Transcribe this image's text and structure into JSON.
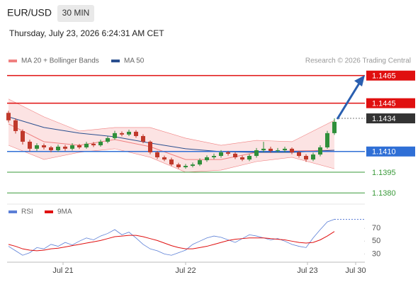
{
  "header": {
    "symbol": "EUR/USD",
    "timeframe": "30 MIN",
    "datetime": "Thursday, July 23, 2026 6:24:31 AM CET"
  },
  "chart_data": [
    {
      "type": "candlestick",
      "legend": [
        {
          "name": "MA 20 + Bollinger Bands",
          "color": "#f08080"
        },
        {
          "name": "MA 50",
          "color": "#2a4f8f"
        }
      ],
      "copyright": "Research © 2026 Trading Central",
      "xlim": [
        -0.2,
        50.3
      ],
      "ylim": [
        1.1376,
        1.1471
      ],
      "xticks": [
        {
          "value": 7.7,
          "label": "Jul 21"
        },
        {
          "value": 25,
          "label": "Jul 22"
        },
        {
          "value": 42.2,
          "label": "Jul 23"
        },
        {
          "value": 49,
          "label": "Jul 30"
        }
      ],
      "up_color": "#2f8f3a",
      "down_color": "#c0392b",
      "candles": [
        [
          1.1438,
          1.14395,
          1.1431,
          1.14326
        ],
        [
          1.14326,
          1.1434,
          1.1423,
          1.14248
        ],
        [
          1.14248,
          1.1426,
          1.1415,
          1.14171
        ],
        [
          1.14171,
          1.14185,
          1.141,
          1.1412
        ],
        [
          1.1412,
          1.1416,
          1.14105,
          1.14145
        ],
        [
          1.14145,
          1.14158,
          1.14115,
          1.1413
        ],
        [
          1.1413,
          1.1414,
          1.14095,
          1.14109
        ],
        [
          1.14109,
          1.1415,
          1.14098,
          1.14135
        ],
        [
          1.14135,
          1.14148,
          1.14105,
          1.1412
        ],
        [
          1.1412,
          1.1416,
          1.14108,
          1.14145
        ],
        [
          1.14145,
          1.14155,
          1.14118,
          1.1413
        ],
        [
          1.1413,
          1.1417,
          1.1412,
          1.14156
        ],
        [
          1.14156,
          1.14168,
          1.14132,
          1.14145
        ],
        [
          1.14145,
          1.14185,
          1.14135,
          1.14171
        ],
        [
          1.14171,
          1.1421,
          1.1416,
          1.14197
        ],
        [
          1.14197,
          1.1425,
          1.14185,
          1.14233
        ],
        [
          1.14233,
          1.14245,
          1.1421,
          1.14223
        ],
        [
          1.14223,
          1.14258,
          1.14212,
          1.14243
        ],
        [
          1.14243,
          1.14255,
          1.142,
          1.14212
        ],
        [
          1.14212,
          1.14225,
          1.1416,
          1.14171
        ],
        [
          1.14171,
          1.1418,
          1.1408,
          1.14094
        ],
        [
          1.14094,
          1.14105,
          1.14045,
          1.14058
        ],
        [
          1.14058,
          1.1407,
          1.1403,
          1.14042
        ],
        [
          1.14042,
          1.14055,
          1.13995,
          1.14006
        ],
        [
          1.14006,
          1.14018,
          1.13975,
          1.13986
        ],
        [
          1.13986,
          1.1401,
          1.13975,
          1.13996
        ],
        [
          1.13996,
          1.1402,
          1.13985,
          1.14006
        ],
        [
          1.14006,
          1.1405,
          1.13995,
          1.14037
        ],
        [
          1.14037,
          1.14072,
          1.14025,
          1.14058
        ],
        [
          1.14058,
          1.14085,
          1.14045,
          1.14068
        ],
        [
          1.14068,
          1.1411,
          1.14055,
          1.14094
        ],
        [
          1.14094,
          1.14105,
          1.1407,
          1.14084
        ],
        [
          1.14084,
          1.14095,
          1.14045,
          1.14058
        ],
        [
          1.14058,
          1.1407,
          1.1403,
          1.14042
        ],
        [
          1.14042,
          1.1408,
          1.1403,
          1.14068
        ],
        [
          1.14068,
          1.14125,
          1.14055,
          1.14109
        ],
        [
          1.14109,
          1.1417,
          1.14095,
          1.1412
        ],
        [
          1.1412,
          1.14135,
          1.1409,
          1.14104
        ],
        [
          1.14104,
          1.14125,
          1.14092,
          1.14109
        ],
        [
          1.14109,
          1.14135,
          1.14095,
          1.1412
        ],
        [
          1.1412,
          1.1413,
          1.1408,
          1.14094
        ],
        [
          1.14094,
          1.14105,
          1.14055,
          1.14068
        ],
        [
          1.14068,
          1.1408,
          1.14025,
          1.14042
        ],
        [
          1.14042,
          1.14092,
          1.1403,
          1.14078
        ],
        [
          1.14078,
          1.14145,
          1.14065,
          1.1413
        ],
        [
          1.1413,
          1.1425,
          1.1412,
          1.14233
        ],
        [
          1.14233,
          1.1434,
          1.1422,
          1.14315
        ]
      ],
      "indicator_x": [
        0,
        5,
        10,
        15,
        20,
        25,
        30,
        35,
        40,
        46
      ],
      "ma20": [
        1.143,
        1.14171,
        1.14145,
        1.14187,
        1.14135,
        1.14042,
        1.14042,
        1.14094,
        1.14104,
        1.14109
      ],
      "ma50": [
        1.14351,
        1.14274,
        1.14233,
        1.14207,
        1.14161,
        1.1412,
        1.14099,
        1.14094,
        1.14094,
        1.14109
      ],
      "bb_upper": [
        1.1448,
        1.14351,
        1.14248,
        1.14274,
        1.14274,
        1.14197,
        1.14145,
        1.14181,
        1.14171,
        1.14326
      ],
      "bb_lower": [
        1.14145,
        1.14042,
        1.14094,
        1.1412,
        1.14058,
        1.1395,
        1.13965,
        1.14027,
        1.14058,
        1.13975
      ],
      "levels": [
        {
          "value": 1.1465,
          "label": "1.1465",
          "color": "#e01010",
          "style": "box"
        },
        {
          "value": 1.1445,
          "label": "1.1445",
          "color": "#e01010",
          "style": "box"
        },
        {
          "value": 1.1434,
          "label": "1.1434",
          "color": "#333333",
          "style": "current"
        },
        {
          "value": 1.141,
          "label": "1.1410",
          "color": "#2f6fd6",
          "style": "box"
        },
        {
          "value": 1.1395,
          "label": "1.1395",
          "color": "#3a9a3a",
          "style": "text"
        },
        {
          "value": 1.138,
          "label": "1.1380",
          "color": "#3a9a3a",
          "style": "text"
        }
      ]
    },
    {
      "type": "line",
      "ylim": [
        15,
        89
      ],
      "yticks": [
        70,
        50,
        30
      ],
      "series": [
        {
          "name": "RSI",
          "color": "#5b7fd6",
          "values": [
            42,
            35,
            28,
            32,
            40,
            38,
            45,
            42,
            48,
            44,
            50,
            55,
            52,
            58,
            62,
            68,
            60,
            64,
            55,
            45,
            38,
            35,
            30,
            28,
            32,
            36,
            45,
            50,
            55,
            58,
            56,
            52,
            48,
            54,
            60,
            58,
            55,
            52,
            54,
            50,
            45,
            42,
            40,
            55,
            68,
            80,
            84
          ]
        },
        {
          "name": "9MA",
          "color": "#e01010",
          "values": [
            45,
            42,
            38,
            36,
            35,
            36,
            38,
            39,
            41,
            43,
            45,
            47,
            49,
            51,
            54,
            57,
            58,
            59,
            59,
            57,
            54,
            51,
            47,
            43,
            40,
            38,
            38,
            40,
            42,
            45,
            48,
            51,
            53,
            54,
            55,
            55,
            55,
            54,
            53,
            52,
            50,
            48,
            47,
            48,
            52,
            58,
            65
          ]
        }
      ]
    }
  ]
}
